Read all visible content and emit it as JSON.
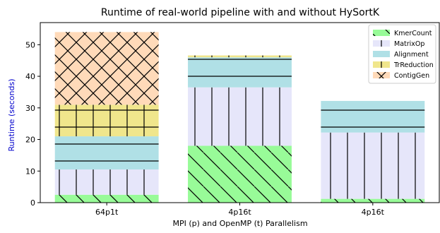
{
  "chart_data": {
    "type": "bar",
    "stacked": true,
    "title": "Runtime of real-world pipeline with and without HySortK",
    "xlabel": "MPI (p) and OpenMP (t) Parallelism",
    "ylabel": "Runtime (seconds)",
    "categories": [
      "64p1t",
      "4p16t",
      "4p16t"
    ],
    "ylim": [
      0,
      57
    ],
    "yticks": [
      0,
      10,
      20,
      30,
      40,
      50
    ],
    "grid": false,
    "legend_position": "top-right",
    "series": [
      {
        "name": "KmerCount",
        "values": [
          2.5,
          18.0,
          1.2
        ],
        "color": "#98fb98",
        "hatch": "diag-backslash"
      },
      {
        "name": "MatrixOp",
        "values": [
          8.0,
          18.5,
          21.0
        ],
        "color": "#e6e6fa",
        "hatch": "vertical"
      },
      {
        "name": "Alignment",
        "values": [
          10.5,
          9.5,
          10.0
        ],
        "color": "#b0e0e6",
        "hatch": "horizontal"
      },
      {
        "name": "TrReduction",
        "values": [
          10.0,
          0.6,
          0.0
        ],
        "color": "#f0e68c",
        "hatch": "grid"
      },
      {
        "name": "ContigGen",
        "values": [
          23.0,
          0.0,
          0.0
        ],
        "color": "#ffdab9",
        "hatch": "cross-diag"
      }
    ]
  }
}
